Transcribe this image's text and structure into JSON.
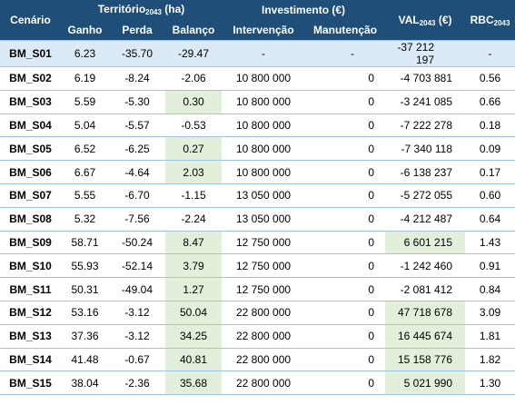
{
  "header": {
    "scenario": "Cenário",
    "territory": "Território",
    "territory_sub": "2043",
    "territory_unit": " (ha)",
    "investment": "Investimento (€)",
    "val": "VAL",
    "val_sub": "2043",
    "val_unit": " (€)",
    "rbc": "RBC",
    "rbc_sub": "2043",
    "gain": "Ganho",
    "loss": "Perda",
    "balance": "Balanço",
    "intervention": "Intervenção",
    "maintenance": "Manutenção"
  },
  "rows": [
    {
      "scenario": "BM_S01",
      "gain": "6.23",
      "loss": "-35.70",
      "balance": "-29.47",
      "intervention": "-",
      "maintenance": "-",
      "val": "-37 212 197",
      "rbc": "-",
      "hl_balance": false,
      "hl_val": false
    },
    {
      "scenario": "BM_S02",
      "gain": "6.19",
      "loss": "-8.24",
      "balance": "-2.06",
      "intervention": "10 800 000",
      "maintenance": "0",
      "val": "-4 703 881",
      "rbc": "0.56",
      "hl_balance": false,
      "hl_val": false
    },
    {
      "scenario": "BM_S03",
      "gain": "5.59",
      "loss": "-5.30",
      "balance": "0.30",
      "intervention": "10 800 000",
      "maintenance": "0",
      "val": "-3 241 085",
      "rbc": "0.66",
      "hl_balance": true,
      "hl_val": false
    },
    {
      "scenario": "BM_S04",
      "gain": "5.04",
      "loss": "-5.57",
      "balance": "-0.53",
      "intervention": "10 800 000",
      "maintenance": "0",
      "val": "-7 222 278",
      "rbc": "0.18",
      "hl_balance": false,
      "hl_val": false
    },
    {
      "scenario": "BM_S05",
      "gain": "6.52",
      "loss": "-6.25",
      "balance": "0.27",
      "intervention": "10 800 000",
      "maintenance": "0",
      "val": "-7 340 118",
      "rbc": "0.09",
      "hl_balance": true,
      "hl_val": false
    },
    {
      "scenario": "BM_S06",
      "gain": "6.67",
      "loss": "-4.64",
      "balance": "2.03",
      "intervention": "10 800 000",
      "maintenance": "0",
      "val": "-6 138 237",
      "rbc": "0.17",
      "hl_balance": true,
      "hl_val": false
    },
    {
      "scenario": "BM_S07",
      "gain": "5.55",
      "loss": "-6.70",
      "balance": "-1.15",
      "intervention": "13 050 000",
      "maintenance": "0",
      "val": "-5 272 055",
      "rbc": "0.60",
      "hl_balance": false,
      "hl_val": false
    },
    {
      "scenario": "BM_S08",
      "gain": "5.32",
      "loss": "-7.56",
      "balance": "-2.24",
      "intervention": "13 050 000",
      "maintenance": "0",
      "val": "-4 212 487",
      "rbc": "0.64",
      "hl_balance": false,
      "hl_val": false
    },
    {
      "scenario": "BM_S09",
      "gain": "58.71",
      "loss": "-50.24",
      "balance": "8.47",
      "intervention": "12 750 000",
      "maintenance": "0",
      "val": "6 601 215",
      "rbc": "1.43",
      "hl_balance": true,
      "hl_val": true
    },
    {
      "scenario": "BM_S10",
      "gain": "55.93",
      "loss": "-52.14",
      "balance": "3.79",
      "intervention": "12 750 000",
      "maintenance": "0",
      "val": "-1 242 460",
      "rbc": "0.91",
      "hl_balance": true,
      "hl_val": false
    },
    {
      "scenario": "BM_S11",
      "gain": "50.31",
      "loss": "-49.04",
      "balance": "1.27",
      "intervention": "12 750 000",
      "maintenance": "0",
      "val": "-2 081 412",
      "rbc": "0.84",
      "hl_balance": true,
      "hl_val": false
    },
    {
      "scenario": "BM_S12",
      "gain": "53.16",
      "loss": "-3.12",
      "balance": "50.04",
      "intervention": "22 800 000",
      "maintenance": "0",
      "val": "47 718 678",
      "rbc": "3.09",
      "hl_balance": true,
      "hl_val": true
    },
    {
      "scenario": "BM_S13",
      "gain": "37.36",
      "loss": "-3.12",
      "balance": "34.25",
      "intervention": "22 800 000",
      "maintenance": "0",
      "val": "16 445 674",
      "rbc": "1.81",
      "hl_balance": true,
      "hl_val": true
    },
    {
      "scenario": "BM_S14",
      "gain": "41.48",
      "loss": "-0.67",
      "balance": "40.81",
      "intervention": "22 800 000",
      "maintenance": "0",
      "val": "15 158 776",
      "rbc": "1.82",
      "hl_balance": true,
      "hl_val": true
    },
    {
      "scenario": "BM_S15",
      "gain": "38.04",
      "loss": "-2.36",
      "balance": "35.68",
      "intervention": "22 800 000",
      "maintenance": "0",
      "val": "5 021 990",
      "rbc": "1.30",
      "hl_balance": true,
      "hl_val": true
    }
  ],
  "colors": {
    "header_bg": "#1f4e79",
    "header_text": "#ffffff",
    "highlight_green": "#e2efda",
    "first_row_bg": "#dce9f7",
    "row_border": "#9dc3e6"
  }
}
